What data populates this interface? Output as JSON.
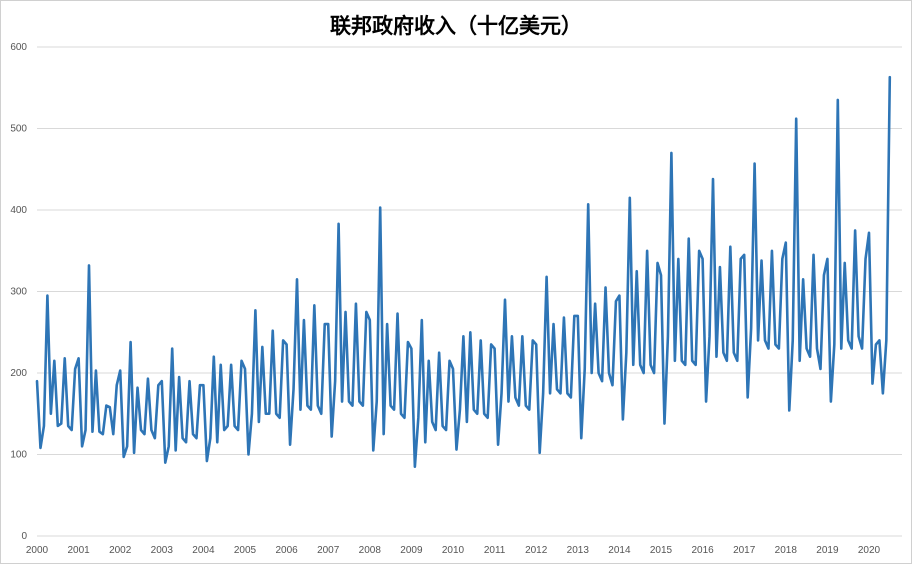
{
  "chart_data": {
    "type": "line",
    "title": "联邦政府收入（十亿美元）",
    "xlabel": "",
    "ylabel": "",
    "ylim": [
      0,
      600
    ],
    "y_ticks": [
      0,
      100,
      200,
      300,
      400,
      500,
      600
    ],
    "x_ticks": [
      "2000",
      "2001",
      "2002",
      "2003",
      "2004",
      "2005",
      "2006",
      "2007",
      "2008",
      "2009",
      "2010",
      "2011",
      "2012",
      "2013",
      "2014",
      "2015",
      "2016",
      "2017",
      "2018",
      "2019",
      "2020"
    ],
    "x_start": 2000,
    "grid": true,
    "legend": "none",
    "line_color": "#2e75b6",
    "series": [
      {
        "values": [
          190,
          108,
          135,
          295,
          150,
          215,
          135,
          138,
          218,
          135,
          130,
          205,
          218,
          110,
          130,
          332,
          128,
          203,
          128,
          125,
          160,
          158,
          125,
          185,
          203,
          97,
          110,
          238,
          102,
          182,
          130,
          125,
          193,
          130,
          120,
          185,
          190,
          90,
          110,
          230,
          105,
          195,
          120,
          115,
          190,
          125,
          120,
          185,
          185,
          92,
          120,
          220,
          115,
          210,
          130,
          135,
          210,
          135,
          130,
          215,
          205,
          100,
          150,
          277,
          140,
          232,
          150,
          150,
          252,
          150,
          145,
          240,
          235,
          112,
          180,
          315,
          155,
          265,
          160,
          155,
          283,
          160,
          150,
          260,
          260,
          122,
          190,
          383,
          165,
          275,
          165,
          160,
          285,
          165,
          160,
          275,
          265,
          105,
          165,
          403,
          125,
          260,
          160,
          155,
          273,
          150,
          145,
          238,
          230,
          85,
          145,
          265,
          115,
          215,
          140,
          130,
          225,
          135,
          130,
          215,
          205,
          106,
          155,
          245,
          140,
          250,
          155,
          150,
          240,
          150,
          145,
          235,
          230,
          112,
          175,
          290,
          165,
          245,
          170,
          160,
          245,
          160,
          155,
          240,
          235,
          102,
          175,
          318,
          175,
          260,
          180,
          175,
          268,
          175,
          170,
          270,
          270,
          120,
          205,
          407,
          200,
          285,
          200,
          190,
          305,
          200,
          185,
          288,
          295,
          143,
          225,
          415,
          210,
          325,
          210,
          200,
          350,
          210,
          200,
          335,
          320,
          138,
          245,
          470,
          215,
          340,
          215,
          210,
          365,
          215,
          210,
          350,
          340,
          165,
          245,
          438,
          220,
          330,
          225,
          215,
          355,
          225,
          215,
          340,
          345,
          170,
          255,
          457,
          240,
          338,
          240,
          230,
          350,
          235,
          230,
          340,
          360,
          154,
          240,
          512,
          215,
          315,
          230,
          220,
          345,
          230,
          205,
          320,
          340,
          165,
          235,
          535,
          230,
          335,
          240,
          230,
          375,
          245,
          230,
          340,
          372,
          187,
          235,
          240,
          175,
          240,
          563
        ]
      }
    ]
  }
}
